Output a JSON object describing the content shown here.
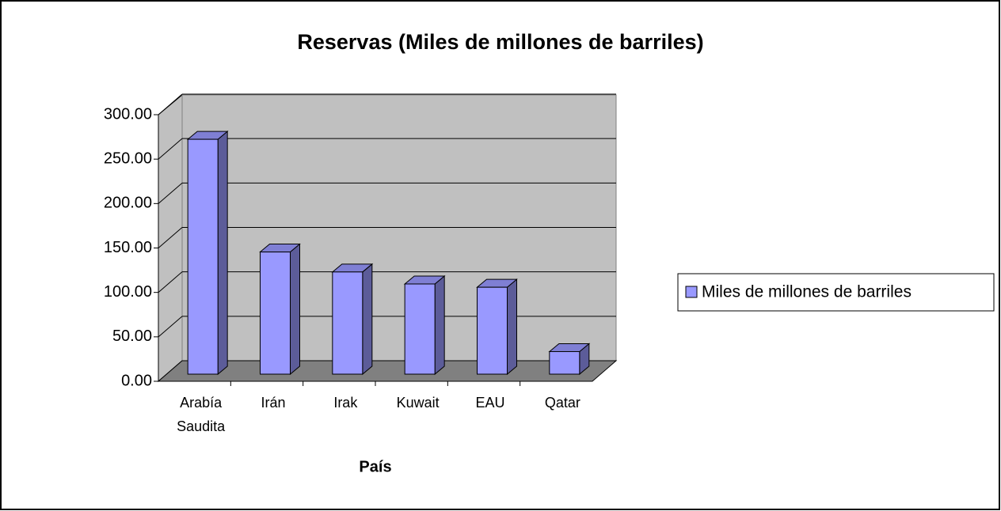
{
  "chart_data": {
    "type": "bar3d",
    "title": "Reservas (Miles de millones de barriles)",
    "x_label": "País",
    "categories": [
      "Arabía Saudita",
      "Irán",
      "Irak",
      "Kuwait",
      "EAU",
      "Qatar"
    ],
    "series": [
      {
        "name": "Miles de millones de barriles",
        "color": "#9999ff",
        "values": [
          264.3,
          137.5,
          115,
          101.5,
          97.8,
          25.4
        ]
      }
    ],
    "ylim": [
      0,
      300
    ],
    "yticks": [
      {
        "value": 0,
        "label": "0.00"
      },
      {
        "value": 50,
        "label": "50.00"
      },
      {
        "value": 100,
        "label": "100.00"
      },
      {
        "value": 150,
        "label": "150.00"
      },
      {
        "value": 200,
        "label": "200.00"
      },
      {
        "value": 250,
        "label": "250.00"
      },
      {
        "value": 300,
        "label": "300.00"
      }
    ],
    "grid": true,
    "legend": "right"
  }
}
